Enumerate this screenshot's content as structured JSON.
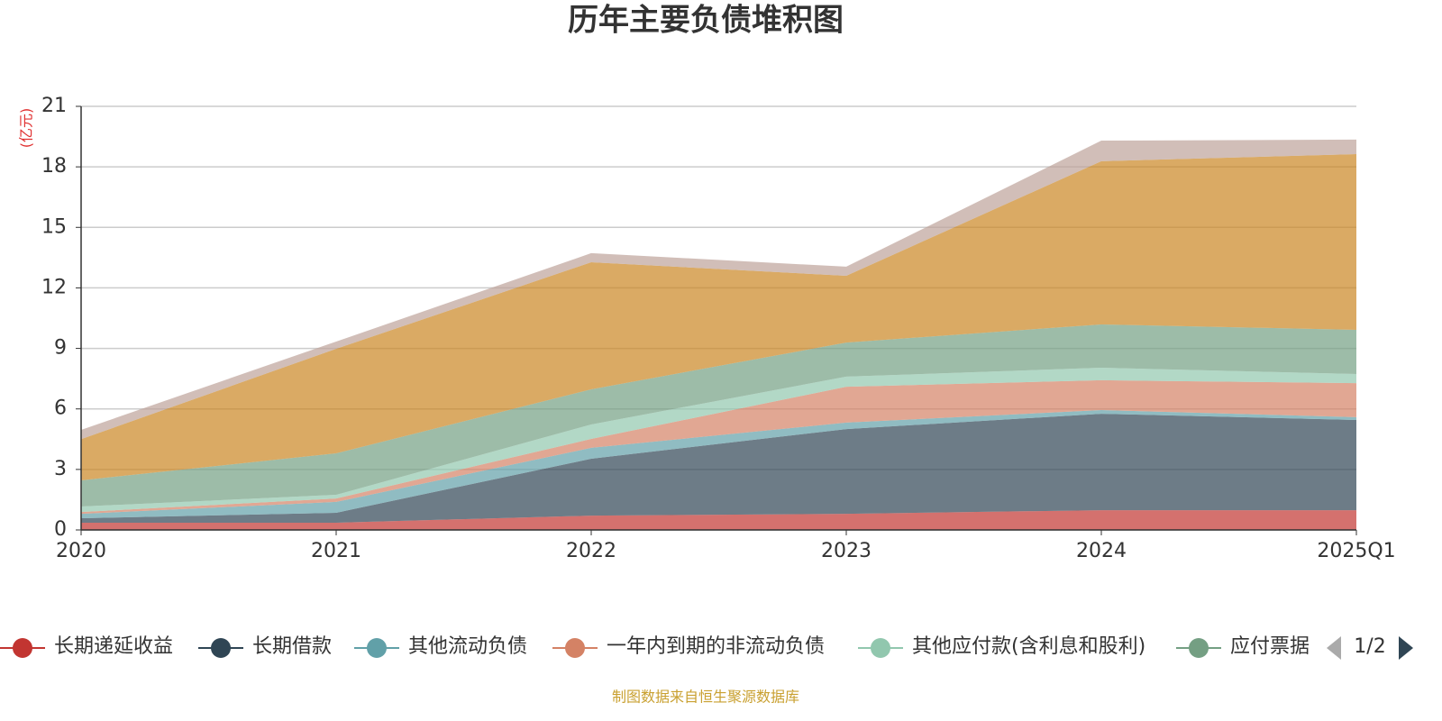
{
  "chart_data": {
    "type": "stacked-area",
    "title": "历年主要负债堆积图",
    "y_unit": "(亿元)",
    "source": "制图数据来自恒生聚源数据库",
    "categories": [
      "2020",
      "2021",
      "2022",
      "2023",
      "2024",
      "2025Q1"
    ],
    "ylim": [
      0,
      21
    ],
    "yticks": [
      0,
      3,
      6,
      9,
      12,
      15,
      18,
      21
    ],
    "grid": true,
    "legend_page": "1/2",
    "series": [
      {
        "name": "长期递延收益",
        "color": "#c23531",
        "values": [
          0.36,
          0.36,
          0.71,
          0.8,
          0.98,
          0.98
        ]
      },
      {
        "name": "长期借款",
        "color": "#2f4554",
        "values": [
          0.22,
          0.49,
          2.82,
          4.2,
          4.78,
          4.47
        ]
      },
      {
        "name": "其他流动负债",
        "color": "#61a0a8",
        "values": [
          0.22,
          0.54,
          0.54,
          0.32,
          0.18,
          0.14
        ]
      },
      {
        "name": "一年内到期的非流动负债",
        "color": "#d48265",
        "values": [
          0.09,
          0.17,
          0.44,
          1.78,
          1.48,
          1.69
        ]
      },
      {
        "name": "其他应付款(含利息和股利)",
        "color": "#91c7ae",
        "values": [
          0.27,
          0.18,
          0.72,
          0.5,
          0.62,
          0.45
        ]
      },
      {
        "name": "应付票据",
        "color": "#749f83",
        "values": [
          1.3,
          2.06,
          1.74,
          1.69,
          2.15,
          2.19
        ]
      },
      {
        "color": "#ca8622",
        "values": [
          2.04,
          5.18,
          6.3,
          3.31,
          8.09,
          8.71
        ]
      },
      {
        "color": "#bda29a",
        "values": [
          0.46,
          0.36,
          0.45,
          0.45,
          1.02,
          0.72
        ]
      }
    ]
  }
}
